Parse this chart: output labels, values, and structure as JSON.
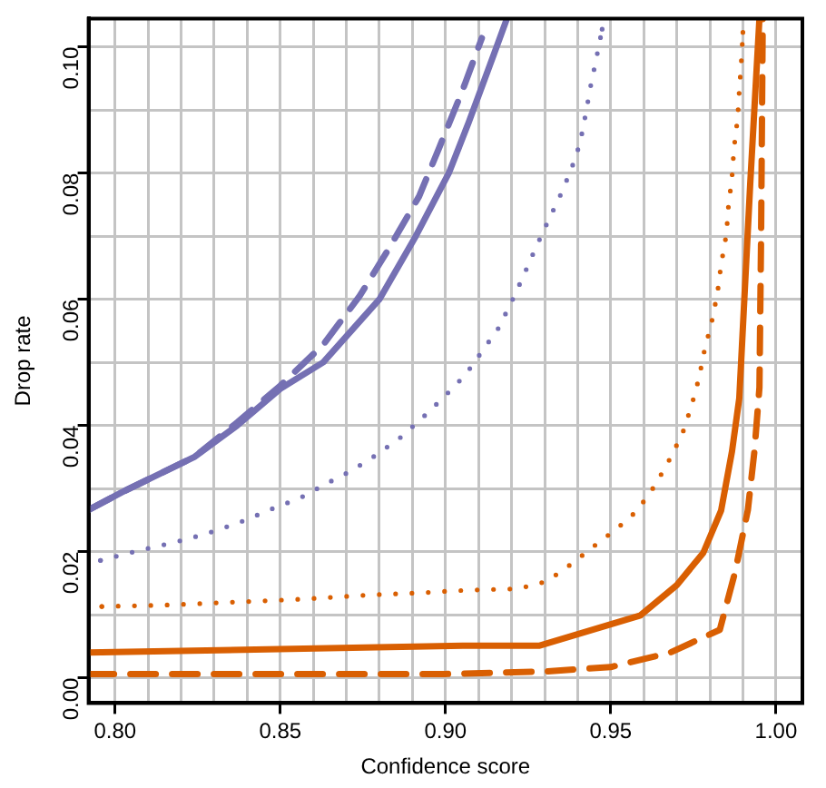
{
  "chart_data": {
    "type": "line",
    "xlabel": "Confidence score",
    "ylabel": "Drop rate",
    "xlim": [
      0.792,
      1.008
    ],
    "ylim": [
      -0.004,
      0.1045
    ],
    "xticks": [
      {
        "value": 0.8,
        "label": "0.80"
      },
      {
        "value": 0.81,
        "label": null
      },
      {
        "value": 0.82,
        "label": null
      },
      {
        "value": 0.83,
        "label": null
      },
      {
        "value": 0.84,
        "label": null
      },
      {
        "value": 0.85,
        "label": "0.85"
      },
      {
        "value": 0.86,
        "label": null
      },
      {
        "value": 0.87,
        "label": null
      },
      {
        "value": 0.88,
        "label": null
      },
      {
        "value": 0.89,
        "label": null
      },
      {
        "value": 0.9,
        "label": "0.90"
      },
      {
        "value": 0.91,
        "label": null
      },
      {
        "value": 0.92,
        "label": null
      },
      {
        "value": 0.93,
        "label": null
      },
      {
        "value": 0.94,
        "label": null
      },
      {
        "value": 0.95,
        "label": "0.95"
      },
      {
        "value": 0.96,
        "label": null
      },
      {
        "value": 0.97,
        "label": null
      },
      {
        "value": 0.98,
        "label": null
      },
      {
        "value": 0.99,
        "label": null
      },
      {
        "value": 1.0,
        "label": "1.00"
      }
    ],
    "yticks": [
      {
        "value": 0,
        "label": "0.00"
      },
      {
        "value": 0.01,
        "label": null
      },
      {
        "value": 0.02,
        "label": "0.02"
      },
      {
        "value": 0.03,
        "label": null
      },
      {
        "value": 0.04,
        "label": "0.04"
      },
      {
        "value": 0.05,
        "label": null
      },
      {
        "value": 0.06,
        "label": "0.06"
      },
      {
        "value": 0.07,
        "label": null
      },
      {
        "value": 0.08,
        "label": "0.08"
      },
      {
        "value": 0.09,
        "label": null
      },
      {
        "value": 0.1,
        "label": "0.10"
      }
    ],
    "grid": true,
    "legend": false,
    "marker": "none",
    "series": [
      {
        "color": "#7570b3",
        "line_style": "solid",
        "x": [
          0.792,
          0.802,
          0.824,
          0.837,
          0.85,
          0.863,
          0.88,
          0.891,
          0.901,
          0.907,
          0.9147,
          0.9186
        ],
        "values": [
          0.0266,
          0.0294,
          0.035,
          0.04,
          0.0458,
          0.05,
          0.06,
          0.07,
          0.08,
          0.088,
          0.0989,
          0.1045
        ]
      },
      {
        "color": "#7570b3",
        "line_style": "dashed",
        "x": [
          0.792,
          0.802,
          0.824,
          0.837,
          0.85,
          0.863,
          0.874,
          0.8826,
          0.892,
          0.898,
          0.905,
          0.911
        ],
        "values": [
          0.0266,
          0.0294,
          0.035,
          0.0405,
          0.0463,
          0.0528,
          0.0605,
          0.0678,
          0.0763,
          0.0839,
          0.0929,
          0.1014
        ]
      },
      {
        "color": "#7570b3",
        "line_style": "dotted",
        "x": [
          0.7956,
          0.8044,
          0.8133,
          0.822,
          0.831,
          0.839,
          0.8476,
          0.856,
          0.864,
          0.8715,
          0.879,
          0.8864,
          0.893,
          0.8997,
          0.906,
          0.911,
          0.916,
          0.92,
          0.9235,
          0.927,
          0.9307,
          0.9346,
          0.938,
          0.9407,
          0.9424,
          0.944,
          0.9457,
          0.9474
        ],
        "values": [
          0.0186,
          0.0198,
          0.0209,
          0.022,
          0.0234,
          0.0249,
          0.0268,
          0.0285,
          0.0308,
          0.0328,
          0.0353,
          0.0381,
          0.0412,
          0.0446,
          0.048,
          0.0517,
          0.0554,
          0.0596,
          0.0636,
          0.0678,
          0.072,
          0.0763,
          0.0805,
          0.0847,
          0.0893,
          0.094,
          0.0983,
          0.1028
        ]
      },
      {
        "color": "#d95f02",
        "line_style": "solid",
        "x": [
          0.792,
          0.906,
          0.9285,
          0.959,
          0.97,
          0.978,
          0.9834,
          0.9867,
          0.9889,
          0.9922,
          0.995
        ],
        "values": [
          0.004,
          0.0051,
          0.0051,
          0.0099,
          0.0147,
          0.0198,
          0.0265,
          0.0359,
          0.0443,
          0.0782,
          0.1045
        ]
      },
      {
        "color": "#d95f02",
        "line_style": "dashed",
        "x": [
          0.792,
          0.9,
          0.93,
          0.95,
          0.968,
          0.983,
          0.9876,
          0.9915,
          0.9935,
          0.995,
          0.9955,
          0.996
        ],
        "values": [
          0.0006,
          0.0006,
          0.001,
          0.0017,
          0.004,
          0.0076,
          0.0167,
          0.0266,
          0.036,
          0.046,
          0.07,
          0.1045
        ]
      },
      {
        "color": "#d95f02",
        "line_style": "dotted",
        "x": [
          0.796,
          0.8055,
          0.8144,
          0.823,
          0.832,
          0.841,
          0.8497,
          0.858,
          0.867,
          0.876,
          0.885,
          0.894,
          0.903,
          0.9135,
          0.922,
          0.9307,
          0.938,
          0.945,
          0.952,
          0.958,
          0.9634,
          0.9679,
          0.9717,
          0.9745,
          0.9767,
          0.9784,
          0.9806,
          0.9823,
          0.9834,
          0.985,
          0.9856,
          0.9867,
          0.9873,
          0.9884,
          0.9889,
          0.9895,
          0.99
        ],
        "values": [
          0.0113,
          0.0114,
          0.0115,
          0.0117,
          0.0119,
          0.0121,
          0.0123,
          0.0125,
          0.0128,
          0.0131,
          0.0133,
          0.0135,
          0.0138,
          0.014,
          0.0141,
          0.0153,
          0.018,
          0.0209,
          0.0237,
          0.0265,
          0.0305,
          0.0347,
          0.0387,
          0.0432,
          0.0475,
          0.052,
          0.0565,
          0.061,
          0.0655,
          0.0703,
          0.0746,
          0.0794,
          0.0839,
          0.0887,
          0.093,
          0.0975,
          0.1023
        ]
      }
    ]
  }
}
